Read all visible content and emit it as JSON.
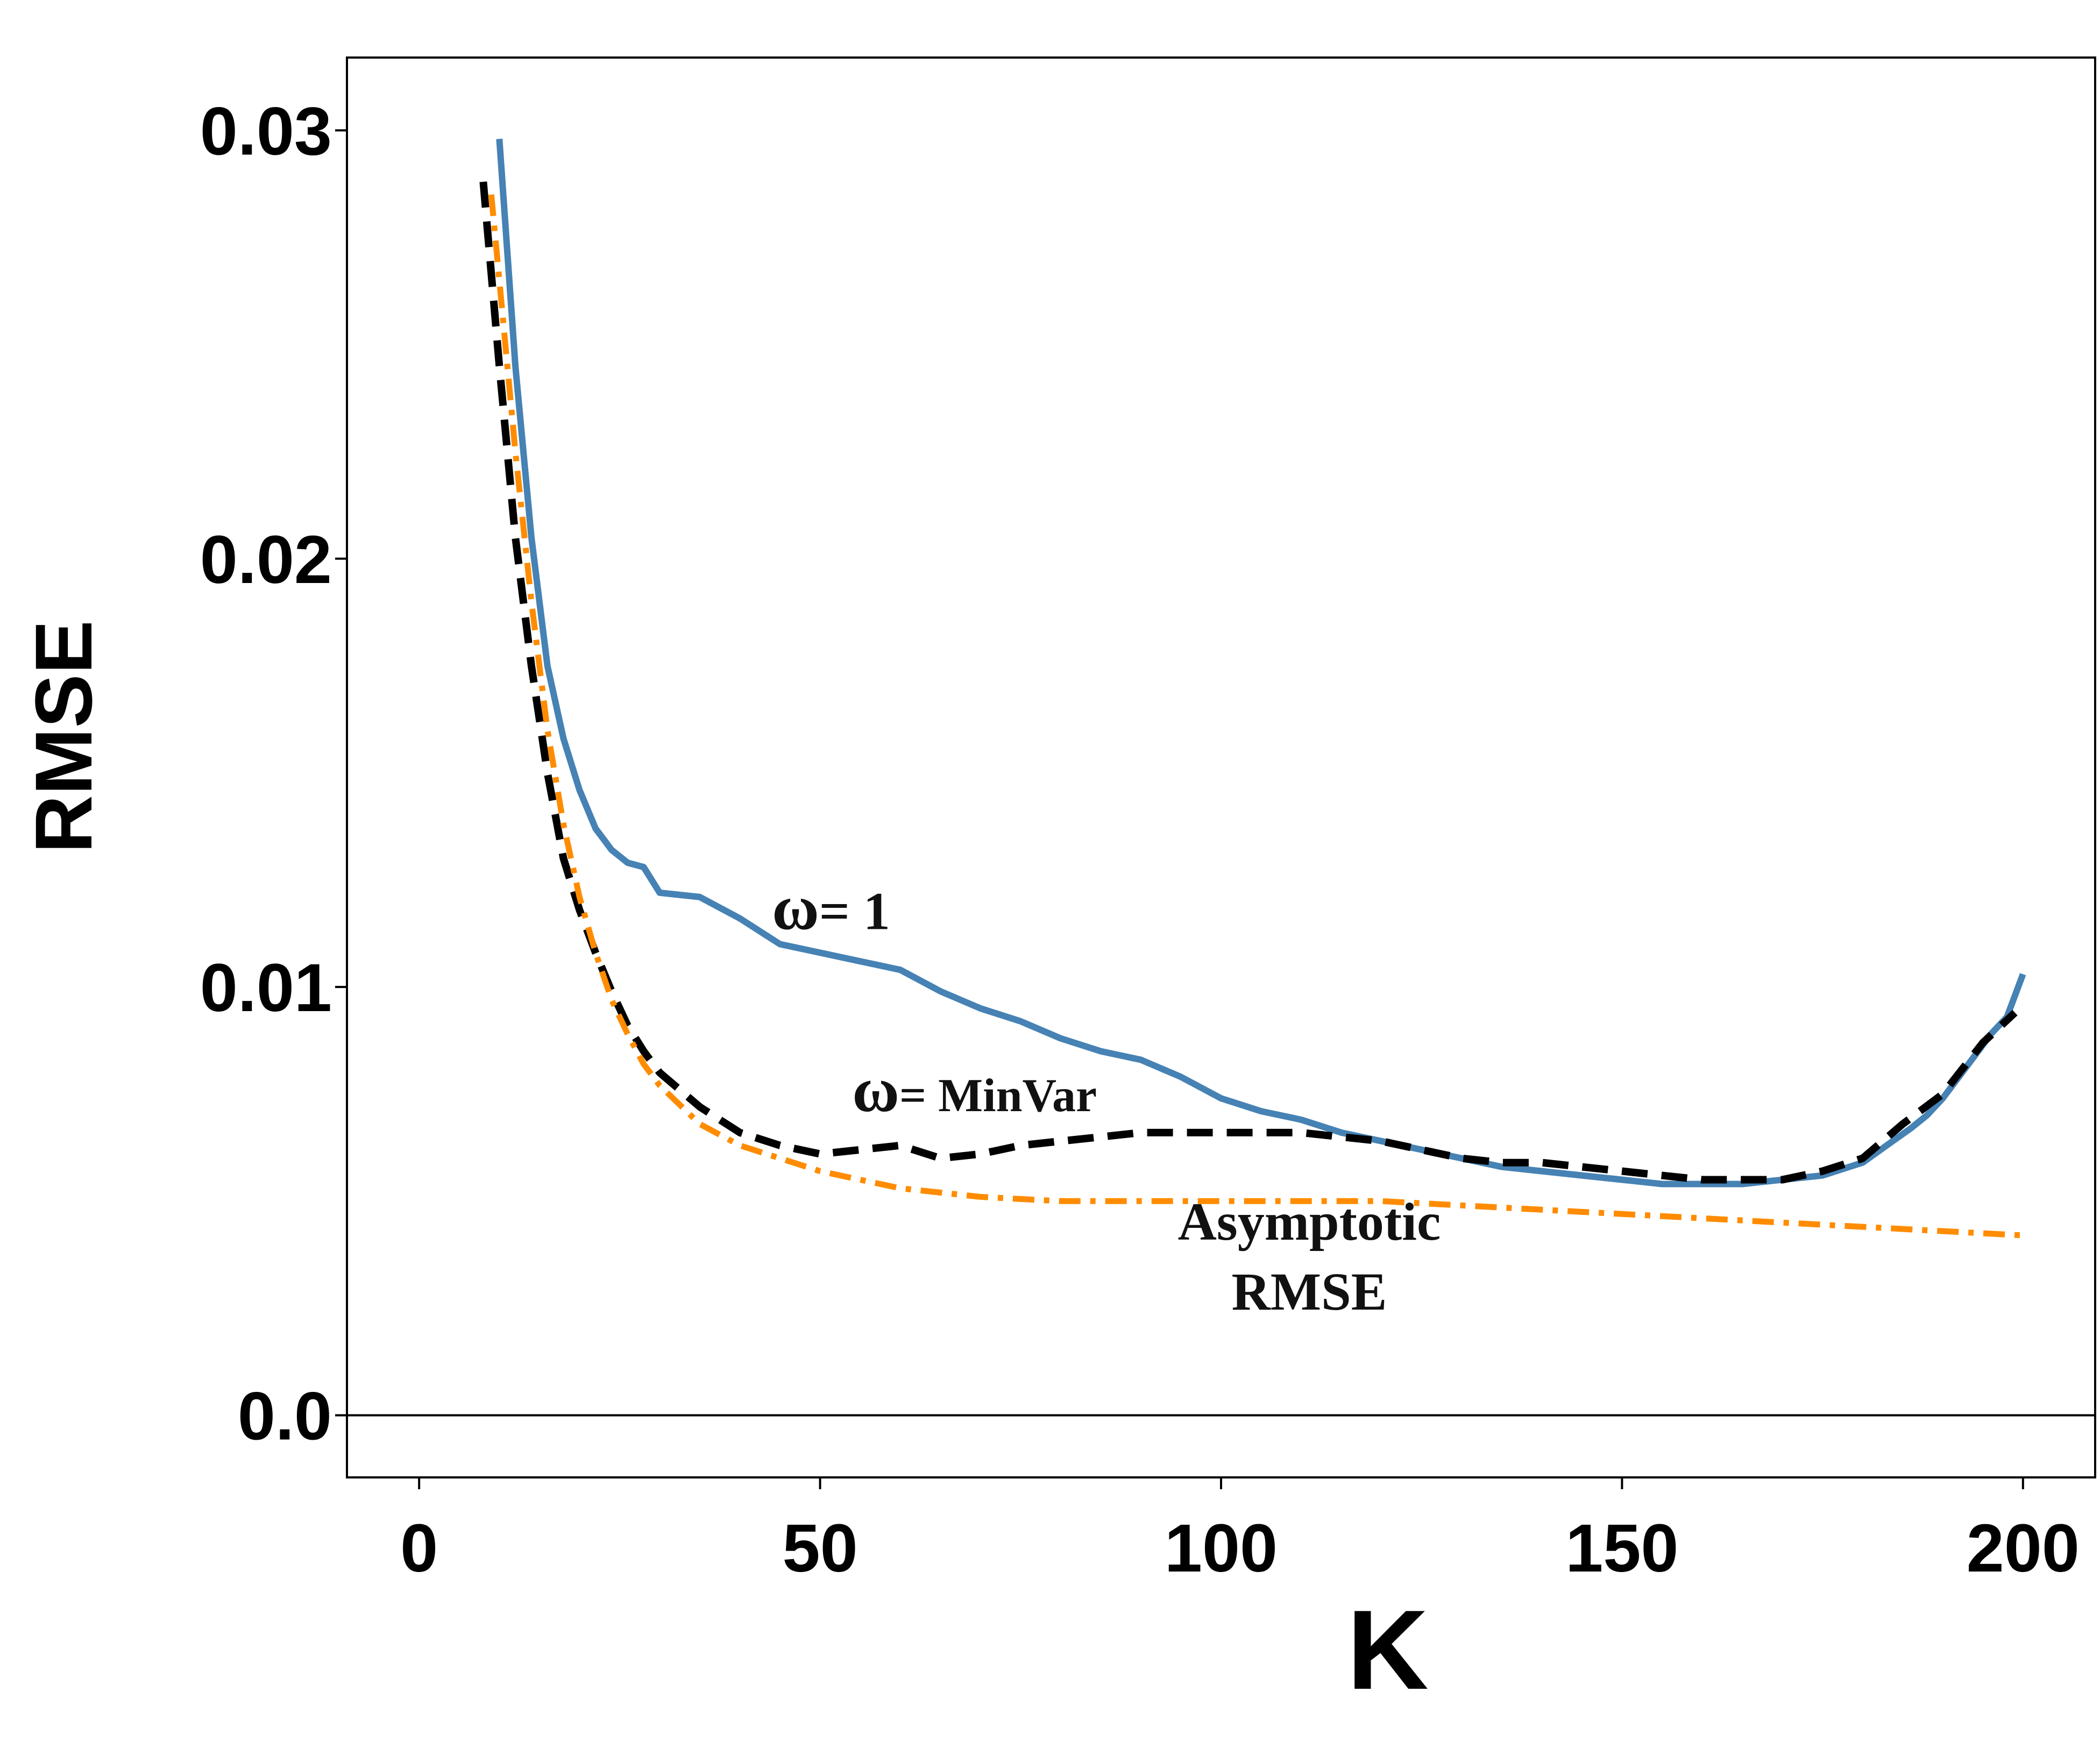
{
  "chart_data": {
    "type": "line",
    "title": "",
    "xlabel": "K",
    "ylabel": "RMSE",
    "xlim": [
      -9,
      209
    ],
    "ylim": [
      -0.00145,
      0.0317
    ],
    "xticks": [
      0,
      50,
      100,
      150,
      200
    ],
    "xtick_labels": [
      "0",
      "50",
      "100",
      "150",
      "200"
    ],
    "yticks": [
      0.0,
      0.01,
      0.02,
      0.03
    ],
    "ytick_labels": [
      "0.0",
      "0.01",
      "0.02",
      "0.03"
    ],
    "grid": false,
    "zero_line": true,
    "colors": {
      "omega1": "#4682b4",
      "minvar": "#000000",
      "asymptotic": "#ff8c00"
    },
    "series": [
      {
        "name": "ω= 1",
        "style": "solid",
        "color": "#4682b4",
        "x": [
          10,
          12,
          14,
          16,
          18,
          20,
          22,
          24,
          26,
          28,
          30,
          35,
          40,
          45,
          50,
          55,
          60,
          65,
          70,
          75,
          80,
          85,
          90,
          95,
          100,
          105,
          110,
          115,
          120,
          125,
          130,
          135,
          140,
          145,
          150,
          155,
          160,
          165,
          170,
          175,
          180,
          183,
          186,
          188,
          190,
          192,
          194,
          196,
          198,
          200
        ],
        "y": [
          0.0298,
          0.0245,
          0.0205,
          0.0175,
          0.0158,
          0.0146,
          0.0137,
          0.0132,
          0.0129,
          0.0128,
          0.0122,
          0.0121,
          0.0116,
          0.011,
          0.0108,
          0.0106,
          0.0104,
          0.0099,
          0.0095,
          0.0092,
          0.0088,
          0.0085,
          0.0083,
          0.0079,
          0.0074,
          0.0071,
          0.0069,
          0.0066,
          0.0064,
          0.0062,
          0.006,
          0.0058,
          0.0057,
          0.0056,
          0.0055,
          0.0054,
          0.0054,
          0.0054,
          0.0055,
          0.0056,
          0.0059,
          0.0063,
          0.0067,
          0.007,
          0.0074,
          0.0079,
          0.0084,
          0.0089,
          0.0093,
          0.0103
        ]
      },
      {
        "name": "ω= MinVar",
        "style": "dashed",
        "color": "#000000",
        "x": [
          8,
          10,
          12,
          14,
          16,
          18,
          20,
          22,
          24,
          26,
          28,
          30,
          35,
          40,
          45,
          50,
          55,
          60,
          65,
          70,
          75,
          80,
          85,
          90,
          95,
          100,
          105,
          110,
          115,
          120,
          125,
          130,
          135,
          140,
          145,
          150,
          155,
          160,
          165,
          170,
          175,
          180,
          185,
          190,
          195,
          199
        ],
        "y": [
          0.0288,
          0.0245,
          0.0205,
          0.0175,
          0.015,
          0.013,
          0.0118,
          0.0108,
          0.0099,
          0.0091,
          0.0085,
          0.008,
          0.0072,
          0.0066,
          0.0063,
          0.0061,
          0.0062,
          0.0063,
          0.006,
          0.0061,
          0.0063,
          0.0064,
          0.0065,
          0.0066,
          0.0066,
          0.0066,
          0.0066,
          0.0066,
          0.0065,
          0.0064,
          0.0062,
          0.006,
          0.0059,
          0.0059,
          0.0058,
          0.0057,
          0.0056,
          0.0055,
          0.0055,
          0.0055,
          0.0057,
          0.006,
          0.0068,
          0.0075,
          0.0087,
          0.0094
        ]
      },
      {
        "name": "Asymptotic RMSE",
        "style": "dashdot",
        "color": "#ff8c00",
        "x": [
          9,
          10,
          12,
          14,
          16,
          18,
          20,
          22,
          24,
          26,
          28,
          30,
          35,
          40,
          45,
          50,
          55,
          60,
          70,
          80,
          90,
          100,
          110,
          120,
          130,
          140,
          150,
          160,
          170,
          180,
          190,
          200
        ],
        "y": [
          0.0285,
          0.0265,
          0.0225,
          0.019,
          0.016,
          0.0138,
          0.0121,
          0.0108,
          0.0097,
          0.0089,
          0.0082,
          0.0077,
          0.0068,
          0.0063,
          0.006,
          0.0057,
          0.0055,
          0.0053,
          0.0051,
          0.005,
          0.005,
          0.005,
          0.005,
          0.005,
          0.0049,
          0.0048,
          0.0047,
          0.0046,
          0.0045,
          0.0044,
          0.0043,
          0.0042
        ]
      }
    ],
    "annotations": [
      {
        "id": "omega1",
        "symbol": "ω",
        "text": "= 1",
        "x": 44,
        "y": 0.01135
      },
      {
        "id": "minvar",
        "symbol": "ω",
        "text": "= MinVar",
        "x": 54,
        "y": 0.0071
      },
      {
        "id": "asym",
        "lines": [
          "Asymptotic",
          "RMSE"
        ],
        "x": 111,
        "y": 0.0041
      }
    ]
  }
}
